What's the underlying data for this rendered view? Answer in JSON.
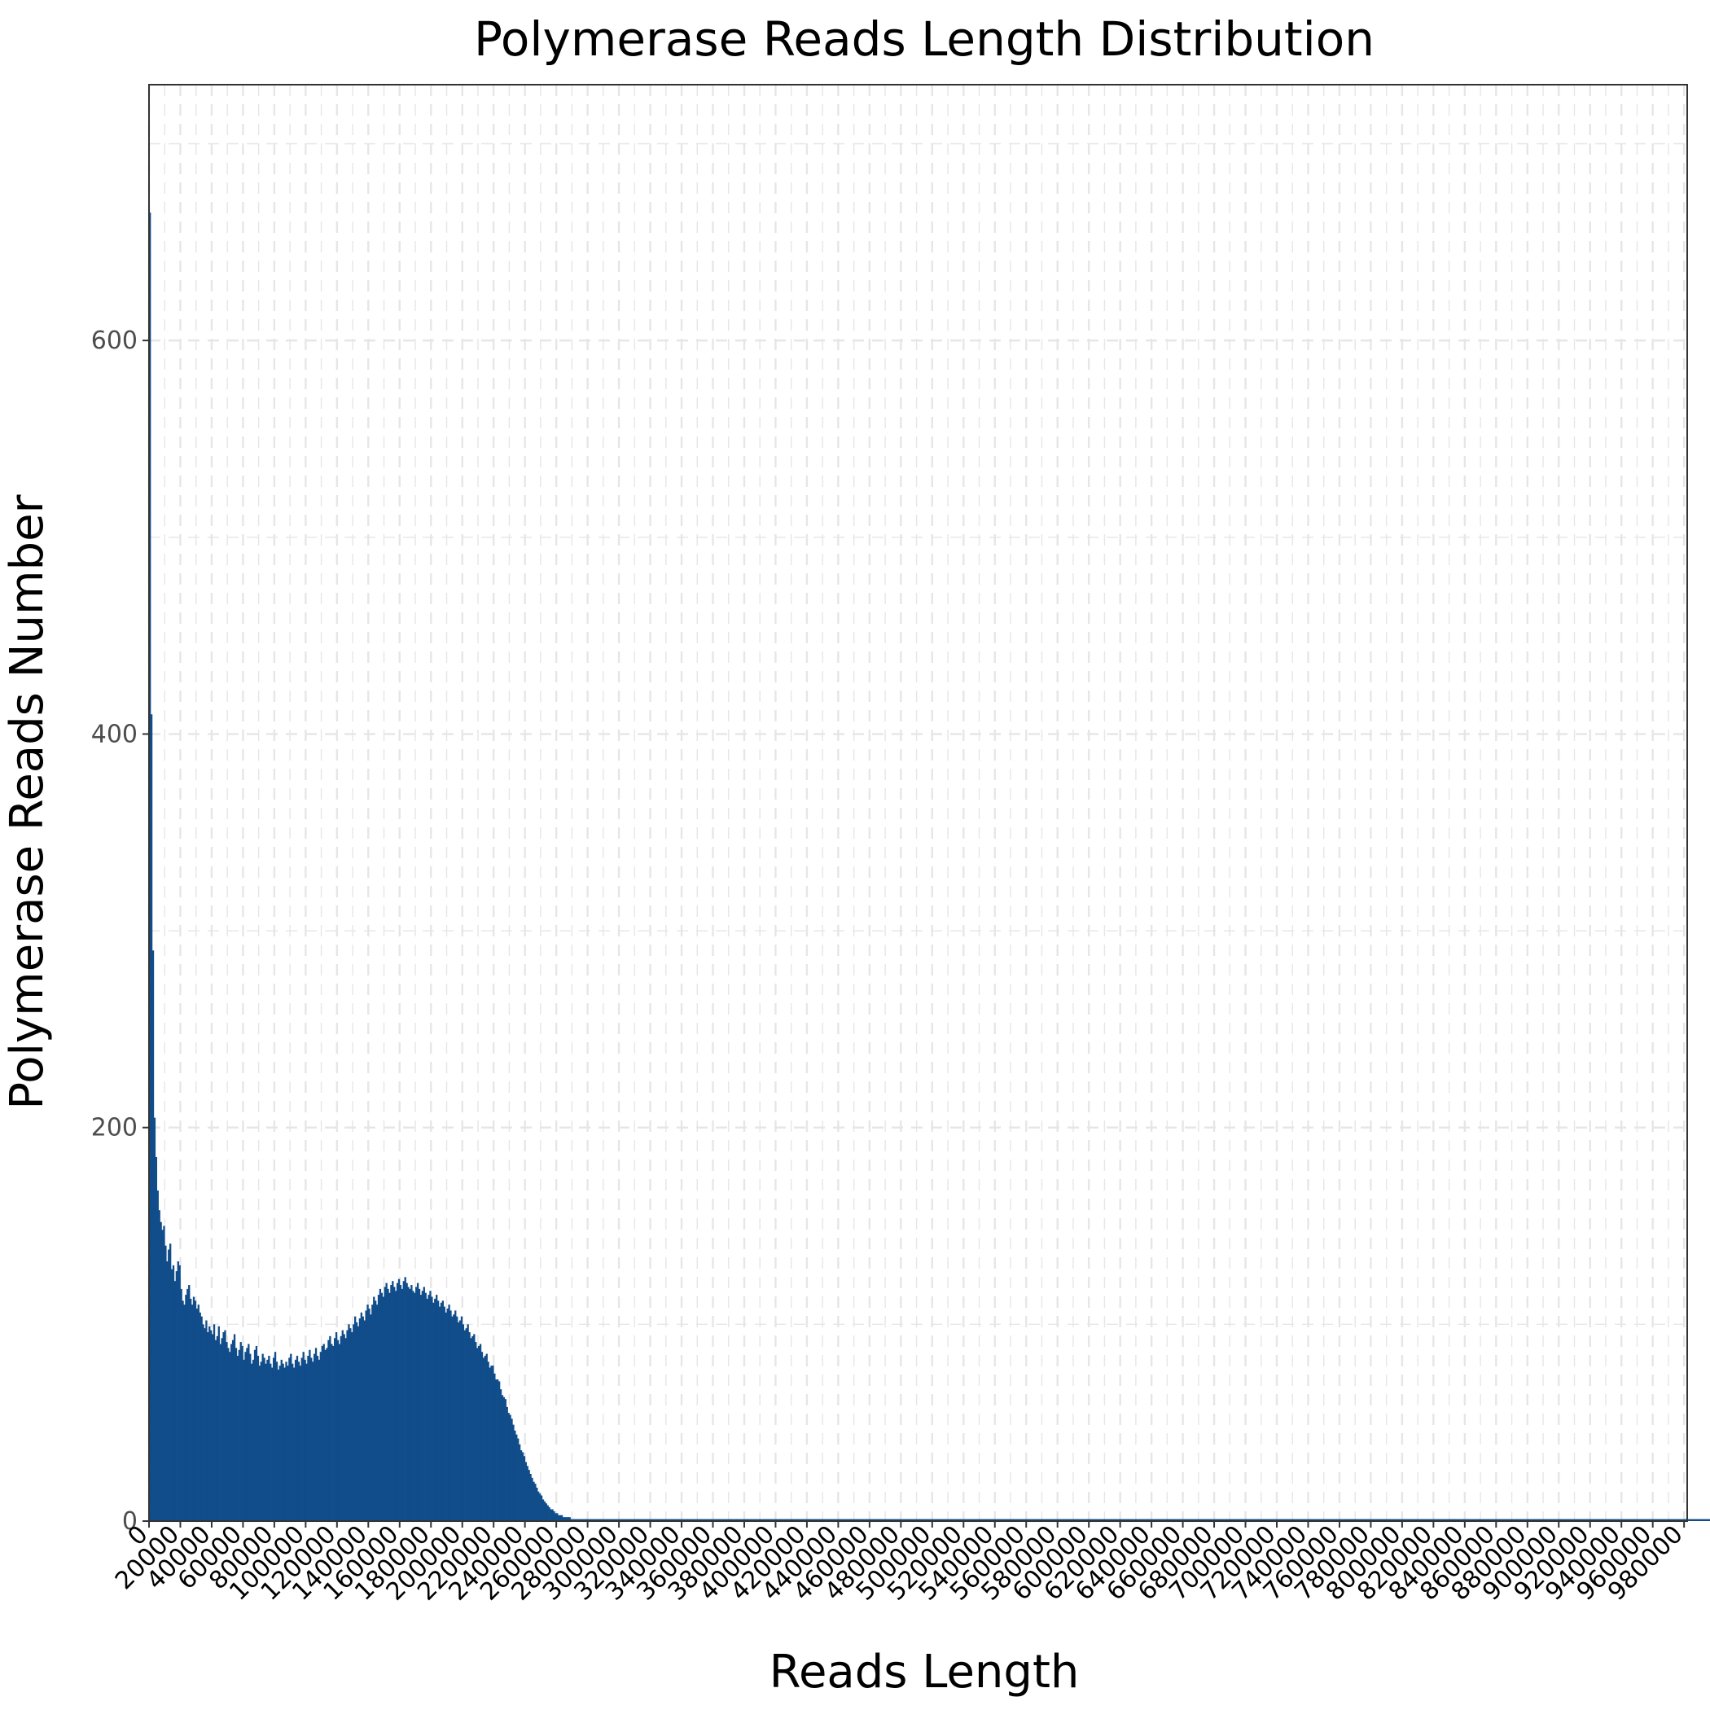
{
  "chart_data": {
    "type": "bar",
    "title": "Polymerase Reads Length Distribution",
    "xlabel": "Reads Length",
    "ylabel": "Polymerase Reads Number",
    "xlim": [
      0,
      982000
    ],
    "ylim": [
      0,
      730
    ],
    "bin_width": 1000,
    "grid": true,
    "legend": "none",
    "bar_color": "#114d8a",
    "y_ticks": [
      0,
      200,
      400,
      600
    ],
    "x_ticks": [
      0,
      20000,
      40000,
      60000,
      80000,
      100000,
      120000,
      140000,
      160000,
      180000,
      200000,
      220000,
      240000,
      260000,
      280000,
      300000,
      320000,
      340000,
      360000,
      380000,
      400000,
      420000,
      440000,
      460000,
      480000,
      500000,
      520000,
      540000,
      560000,
      580000,
      600000,
      620000,
      640000,
      660000,
      680000,
      700000,
      720000,
      740000,
      760000,
      780000,
      800000,
      820000,
      840000,
      860000,
      880000,
      900000,
      920000,
      940000,
      960000,
      980000
    ],
    "x_tick_labels": [
      "0",
      "20000",
      "40000",
      "60000",
      "80000",
      "100000",
      "120000",
      "140000",
      "160000",
      "180000",
      "200000",
      "220000",
      "240000",
      "260000",
      "280000",
      "300000",
      "320000",
      "340000",
      "360000",
      "380000",
      "400000",
      "420000",
      "440000",
      "460000",
      "480000",
      "500000",
      "520000",
      "540000",
      "560000",
      "580000",
      "600000",
      "620000",
      "640000",
      "660000",
      "680000",
      "700000",
      "720000",
      "740000",
      "760000",
      "780000",
      "800000",
      "820000",
      "840000",
      "860000",
      "880000",
      "900000",
      "920000",
      "940000",
      "960000",
      "980000"
    ],
    "values": [
      665,
      410,
      290,
      205,
      185,
      168,
      158,
      152,
      148,
      150,
      140,
      132,
      138,
      141,
      128,
      130,
      122,
      127,
      132,
      130,
      118,
      112,
      110,
      115,
      118,
      120,
      113,
      110,
      114,
      112,
      108,
      110,
      106,
      104,
      100,
      98,
      102,
      96,
      99,
      97,
      95,
      100,
      92,
      94,
      99,
      90,
      93,
      96,
      97,
      91,
      88,
      86,
      90,
      92,
      95,
      88,
      84,
      87,
      91,
      89,
      82,
      86,
      88,
      90,
      85,
      80,
      82,
      87,
      89,
      84,
      79,
      81,
      85,
      83,
      80,
      82,
      84,
      80,
      78,
      83,
      86,
      81,
      77,
      79,
      82,
      80,
      78,
      81,
      79,
      83,
      85,
      80,
      78,
      82,
      84,
      81,
      79,
      83,
      86,
      82,
      80,
      84,
      87,
      83,
      81,
      85,
      88,
      84,
      82,
      86,
      89,
      90,
      87,
      88,
      92,
      94,
      90,
      89,
      93,
      96,
      92,
      90,
      94,
      97,
      95,
      93,
      97,
      100,
      98,
      96,
      100,
      104,
      101,
      99,
      103,
      106,
      104,
      102,
      107,
      110,
      108,
      105,
      110,
      114,
      112,
      110,
      115,
      118,
      116,
      114,
      119,
      121,
      118,
      116,
      120,
      122,
      119,
      117,
      121,
      123,
      120,
      118,
      122,
      124,
      121,
      119,
      118,
      120,
      117,
      116,
      119,
      121,
      118,
      115,
      117,
      119,
      116,
      113,
      115,
      117,
      114,
      111,
      113,
      115,
      112,
      109,
      111,
      112,
      109,
      106,
      108,
      110,
      107,
      104,
      105,
      107,
      104,
      101,
      102,
      104,
      100,
      97,
      98,
      100,
      96,
      93,
      94,
      95,
      91,
      88,
      89,
      90,
      86,
      83,
      84,
      85,
      81,
      78,
      79,
      79,
      75,
      72,
      72,
      71,
      67,
      64,
      63,
      62,
      58,
      55,
      54,
      52,
      49,
      46,
      44,
      42,
      39,
      36,
      35,
      33,
      30,
      28,
      26,
      24,
      22,
      20,
      19,
      17,
      15,
      14,
      13,
      11,
      10,
      9,
      8,
      7,
      6,
      6,
      5,
      4,
      4,
      3,
      3,
      3,
      2,
      2,
      2,
      2,
      2,
      1,
      1,
      1,
      1,
      1,
      1,
      1,
      1,
      1,
      1,
      1,
      1,
      1,
      1,
      1,
      1,
      1,
      1,
      1,
      1,
      1,
      1,
      1,
      1,
      1,
      1,
      1,
      1,
      1,
      1,
      1,
      1,
      1,
      1,
      1,
      1,
      1,
      1,
      1,
      1,
      1,
      1,
      1,
      1,
      1,
      1,
      1,
      1,
      1,
      1,
      1,
      1,
      1,
      1,
      1,
      1,
      1,
      1,
      1,
      1,
      1,
      1,
      1,
      1,
      1,
      1,
      1,
      1,
      1,
      1,
      1,
      1,
      1,
      1,
      1,
      1,
      1,
      1,
      1,
      1,
      1,
      1,
      1,
      1,
      1,
      1,
      1,
      1,
      1,
      1,
      1,
      1,
      1,
      1,
      1,
      1,
      1,
      1,
      1,
      1,
      1,
      1,
      1,
      1,
      1,
      1,
      1,
      1,
      1,
      1,
      1,
      1,
      1,
      1,
      1,
      1,
      1,
      1,
      1,
      1,
      1,
      1,
      1,
      1,
      1,
      1,
      1,
      1,
      1,
      1,
      1,
      1,
      1,
      1,
      1,
      1,
      1,
      1,
      1,
      1,
      1,
      1,
      1,
      1,
      1,
      1,
      1,
      1,
      1,
      1,
      1,
      1,
      1,
      1,
      1,
      1,
      1,
      1,
      1,
      1,
      1,
      1,
      1,
      1,
      1,
      1,
      1,
      1,
      1,
      1,
      1,
      1,
      1,
      1,
      1,
      1,
      1,
      1,
      1,
      1,
      1,
      1,
      1,
      1,
      1,
      1,
      1,
      1,
      1,
      1,
      1,
      1,
      1,
      1,
      1,
      1,
      1,
      1,
      1,
      1,
      1,
      1,
      1,
      1,
      1,
      1,
      1,
      1,
      1,
      1,
      1,
      1,
      1,
      1,
      1,
      1,
      1,
      1,
      1,
      1,
      1,
      1,
      1,
      1,
      1,
      1,
      1,
      1,
      1,
      1,
      1,
      1,
      1,
      1,
      1,
      1,
      1,
      1,
      1,
      1,
      1,
      1,
      1,
      1,
      1,
      1,
      1,
      1,
      1,
      1,
      1,
      1,
      1,
      1,
      1,
      1,
      1,
      1,
      1,
      1,
      1,
      1,
      1,
      1,
      1,
      1,
      1,
      1,
      1,
      1,
      1,
      1,
      1,
      1,
      1,
      1,
      1,
      1,
      1,
      1,
      1,
      1,
      1,
      1,
      1,
      1,
      1,
      1,
      1,
      1,
      1,
      1,
      1,
      1,
      1,
      1,
      1,
      1,
      1,
      1,
      1,
      1,
      1,
      1,
      1,
      1,
      1,
      1,
      1,
      1,
      1,
      1,
      1,
      1,
      1,
      1,
      1,
      1,
      1,
      1,
      1,
      1,
      1,
      1,
      1,
      1,
      1,
      1,
      1,
      1,
      1,
      1,
      1,
      1,
      1,
      1,
      1,
      1,
      1,
      1,
      1,
      1,
      1,
      1,
      1,
      1,
      1,
      1,
      1,
      1,
      1,
      1,
      1,
      1,
      1,
      1,
      1,
      1,
      1,
      1,
      1,
      1,
      1,
      1,
      1,
      1,
      1,
      1,
      1,
      1,
      1,
      1,
      1,
      1,
      1,
      1,
      1,
      1,
      1,
      1,
      1,
      1,
      1,
      1,
      1,
      1,
      1,
      1,
      1,
      1,
      1,
      1,
      1,
      1,
      1,
      1,
      1,
      1,
      1,
      1,
      1,
      1,
      1,
      1,
      1,
      1,
      1,
      1,
      1,
      1,
      1,
      1,
      1,
      1,
      1,
      1,
      1,
      1,
      1,
      1,
      1,
      1,
      1,
      1,
      1,
      1,
      1,
      1,
      1,
      1,
      1,
      1,
      1,
      1,
      1,
      1,
      1,
      1,
      1,
      1,
      1,
      1,
      1,
      1,
      1,
      1,
      1,
      1,
      1,
      1,
      1,
      1,
      1,
      1,
      1,
      1,
      1,
      1,
      1,
      1,
      1,
      1,
      1,
      1,
      1,
      1,
      1,
      1,
      1,
      1,
      1,
      1,
      1,
      1,
      1,
      1,
      1,
      1,
      1,
      1,
      1,
      1,
      1,
      1,
      1,
      1,
      1,
      1,
      1,
      1,
      1,
      1,
      1,
      1,
      1,
      1,
      1,
      1,
      1,
      1,
      1,
      1,
      1,
      1,
      1,
      1,
      1,
      1,
      1,
      1,
      1,
      1,
      1,
      1,
      1,
      1,
      1,
      1,
      1,
      1,
      1,
      1,
      1,
      1,
      1,
      1,
      1,
      1,
      1,
      1,
      1,
      1,
      1,
      1,
      1,
      1,
      1,
      1,
      1,
      1,
      1,
      1,
      1,
      1,
      1,
      1,
      1,
      1,
      1,
      1,
      1,
      1,
      1,
      1,
      1,
      1,
      1,
      1,
      1,
      1,
      1,
      1,
      1,
      1,
      1,
      1,
      1,
      1,
      1,
      1,
      1,
      1,
      1,
      1,
      1,
      1,
      1,
      1,
      1,
      1,
      1,
      1,
      1,
      1,
      1,
      1,
      1,
      1,
      1,
      1,
      1,
      1,
      1,
      1,
      1,
      1,
      1,
      1,
      1,
      1,
      1,
      1,
      1,
      1,
      1,
      1,
      1,
      1,
      1,
      1,
      1,
      1,
      1,
      1,
      1,
      1,
      1,
      1,
      1,
      1,
      1,
      1,
      1,
      1,
      1,
      1,
      1,
      1,
      1,
      1,
      1,
      1,
      1,
      1,
      1,
      1,
      1,
      1,
      1,
      1,
      1,
      1,
      1,
      1,
      1,
      1,
      1,
      1,
      1,
      1,
      1,
      1,
      1,
      1,
      1,
      1,
      1,
      1,
      1,
      1,
      1,
      1,
      1,
      1,
      1,
      1,
      1,
      1,
      1,
      1,
      1,
      1,
      1,
      1,
      1,
      1,
      1,
      1,
      1,
      1,
      1,
      1,
      1,
      1,
      1,
      1,
      1,
      1,
      1,
      1,
      1,
      1,
      1,
      1,
      1,
      1,
      1,
      1,
      1,
      1,
      1,
      1,
      1,
      1,
      1,
      1,
      1,
      1,
      1,
      1,
      1,
      1,
      1,
      1,
      1,
      1,
      1,
      1,
      1,
      1,
      1,
      1,
      1,
      1,
      1,
      1,
      1,
      1,
      1,
      1,
      1,
      1,
      1,
      1,
      1,
      1,
      1,
      1,
      1,
      1,
      1,
      1,
      1,
      1,
      1,
      1,
      1,
      1,
      1,
      1,
      1,
      1,
      1,
      1,
      1,
      1,
      1,
      1,
      1,
      1,
      1,
      1,
      1,
      1,
      1,
      1,
      1,
      1,
      1,
      1,
      1,
      1,
      1,
      1,
      1,
      1,
      1,
      1,
      1,
      1,
      1,
      1,
      1,
      1,
      1,
      1,
      1,
      1,
      1,
      1,
      1,
      1,
      1,
      1,
      1,
      1,
      1,
      1,
      1,
      1,
      1,
      1,
      1,
      1,
      1,
      1,
      1,
      1,
      1,
      1,
      1,
      1,
      1,
      1,
      1,
      1,
      1,
      1,
      1,
      1,
      1,
      1,
      1,
      1,
      1,
      1,
      1,
      1,
      1,
      1,
      1,
      1,
      1,
      1,
      1,
      1,
      1,
      1,
      1,
      1,
      1,
      1,
      1,
      1,
      1,
      1,
      1,
      1,
      1,
      1,
      1,
      1,
      1,
      1,
      1,
      1,
      1,
      1,
      1,
      1,
      1,
      1,
      1,
      1,
      1,
      1,
      1,
      1,
      1,
      1,
      1,
      1,
      1,
      1,
      1,
      1,
      1,
      1,
      1,
      1,
      1,
      1,
      1,
      1,
      1,
      1,
      1,
      1,
      1,
      1,
      1,
      1,
      1,
      1,
      1,
      1,
      1,
      1,
      1,
      1,
      1,
      1,
      1,
      1,
      1,
      1,
      1,
      1,
      1,
      1,
      1,
      1,
      1,
      1,
      1,
      1,
      1,
      1,
      1,
      1,
      1,
      1,
      1,
      1,
      1,
      1,
      1,
      1,
      1,
      1,
      1,
      1,
      1,
      1,
      1,
      1,
      1,
      1,
      1,
      1,
      1,
      1,
      1,
      1,
      1,
      1,
      1,
      1
    ]
  }
}
